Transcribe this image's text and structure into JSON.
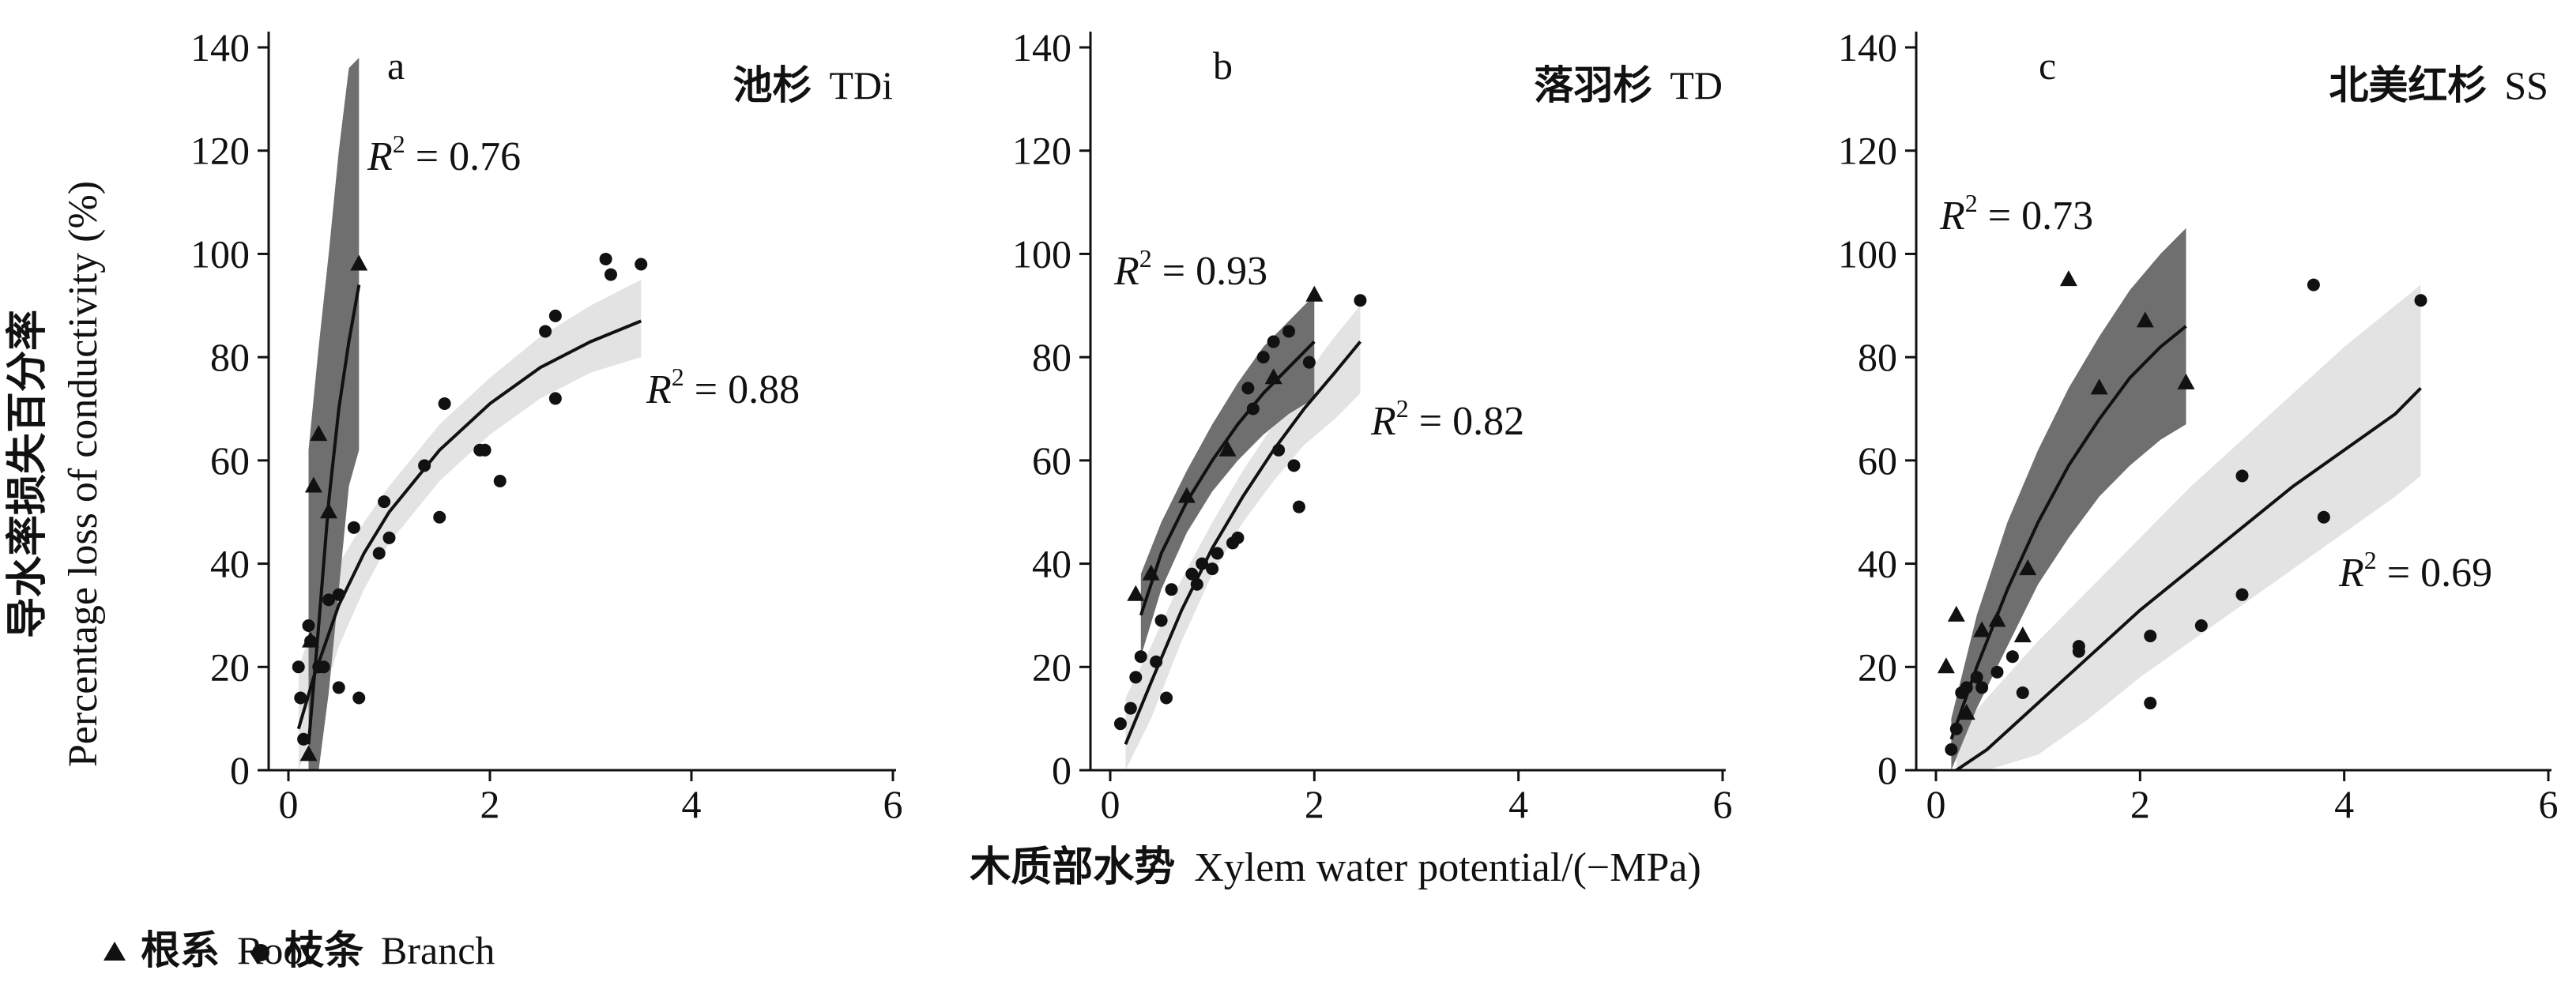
{
  "figure": {
    "ylabel_zh": "导水率损失百分率",
    "ylabel_en": "Percentage loss of conductivity (%)",
    "xlabel_zh": "木质部水势",
    "xlabel_en": "Xylem water potential/(−MPa)",
    "legend": {
      "root_zh": "根系",
      "root_en": "Root",
      "branch_zh": "枝条",
      "branch_en": "Branch"
    },
    "colors": {
      "root_band": "#6f6f6f",
      "branch_band": "#e3e3e3",
      "markers": "#111111",
      "curve": "#111111"
    }
  },
  "chart_data": [
    {
      "type": "scatter",
      "panel_letter": "a",
      "title_zh": "池杉",
      "title_en": "TDi",
      "xlim": [
        0,
        6
      ],
      "ylim": [
        0,
        140
      ],
      "xticks": [
        "0",
        "2",
        "4",
        "6"
      ],
      "yticks": [
        "0",
        "20",
        "40",
        "60",
        "80",
        "100",
        "120",
        "140"
      ],
      "series": [
        {
          "name": "Root",
          "marker": "triangle",
          "r2": "0.76",
          "points": [
            [
              0.2,
              3
            ],
            [
              0.22,
              25
            ],
            [
              0.25,
              55
            ],
            [
              0.3,
              65
            ],
            [
              0.4,
              50
            ],
            [
              0.7,
              98
            ]
          ],
          "fit": [
            [
              0.2,
              5
            ],
            [
              0.3,
              28
            ],
            [
              0.4,
              52
            ],
            [
              0.5,
              70
            ],
            [
              0.6,
              83
            ],
            [
              0.7,
              94
            ]
          ],
          "band_upper": [
            [
              0.2,
              62
            ],
            [
              0.3,
              82
            ],
            [
              0.4,
              100
            ],
            [
              0.5,
              120
            ],
            [
              0.6,
              136
            ],
            [
              0.7,
              138
            ]
          ],
          "band_lower": [
            [
              0.2,
              0
            ],
            [
              0.3,
              0
            ],
            [
              0.4,
              15
            ],
            [
              0.5,
              35
            ],
            [
              0.6,
              55
            ],
            [
              0.7,
              62
            ]
          ]
        },
        {
          "name": "Branch",
          "marker": "circle",
          "r2": "0.88",
          "points": [
            [
              0.1,
              20
            ],
            [
              0.12,
              14
            ],
            [
              0.15,
              6
            ],
            [
              0.2,
              28
            ],
            [
              0.22,
              25
            ],
            [
              0.3,
              20
            ],
            [
              0.35,
              20
            ],
            [
              0.4,
              33
            ],
            [
              0.5,
              16
            ],
            [
              0.5,
              34
            ],
            [
              0.65,
              47
            ],
            [
              0.7,
              14
            ],
            [
              0.9,
              42
            ],
            [
              0.95,
              52
            ],
            [
              1.0,
              45
            ],
            [
              1.35,
              59
            ],
            [
              1.5,
              49
            ],
            [
              1.55,
              71
            ],
            [
              1.9,
              62
            ],
            [
              1.95,
              62
            ],
            [
              2.1,
              56
            ],
            [
              2.55,
              85
            ],
            [
              2.65,
              72
            ],
            [
              2.65,
              88
            ],
            [
              3.15,
              99
            ],
            [
              3.2,
              96
            ],
            [
              3.5,
              98
            ]
          ],
          "fit": [
            [
              0.1,
              8
            ],
            [
              0.25,
              18
            ],
            [
              0.5,
              32
            ],
            [
              0.75,
              42
            ],
            [
              1.0,
              50
            ],
            [
              1.5,
              62
            ],
            [
              2.0,
              71
            ],
            [
              2.5,
              78
            ],
            [
              3.0,
              83
            ],
            [
              3.5,
              87
            ]
          ],
          "band_upper": [
            [
              0.1,
              20
            ],
            [
              0.25,
              28
            ],
            [
              0.5,
              40
            ],
            [
              0.75,
              48
            ],
            [
              1.0,
              55
            ],
            [
              1.5,
              67
            ],
            [
              2.0,
              76
            ],
            [
              2.5,
              84
            ],
            [
              3.0,
              90
            ],
            [
              3.5,
              95
            ]
          ],
          "band_lower": [
            [
              0.1,
              0
            ],
            [
              0.25,
              8
            ],
            [
              0.5,
              24
            ],
            [
              0.75,
              35
            ],
            [
              1.0,
              44
            ],
            [
              1.5,
              56
            ],
            [
              2.0,
              65
            ],
            [
              2.5,
              72
            ],
            [
              3.0,
              77
            ],
            [
              3.5,
              80
            ]
          ]
        }
      ]
    },
    {
      "type": "scatter",
      "panel_letter": "b",
      "title_zh": "落羽杉",
      "title_en": "TD",
      "xlim": [
        0,
        6
      ],
      "ylim": [
        0,
        140
      ],
      "xticks": [
        "0",
        "2",
        "4",
        "6"
      ],
      "yticks": [
        "0",
        "20",
        "40",
        "60",
        "80",
        "100",
        "120",
        "140"
      ],
      "series": [
        {
          "name": "Root",
          "marker": "triangle",
          "r2": "0.93",
          "points": [
            [
              0.25,
              34
            ],
            [
              0.4,
              38
            ],
            [
              0.75,
              53
            ],
            [
              1.15,
              62
            ],
            [
              1.6,
              76
            ],
            [
              2.0,
              92
            ]
          ],
          "fit": [
            [
              0.3,
              30
            ],
            [
              0.5,
              42
            ],
            [
              0.75,
              52
            ],
            [
              1.0,
              60
            ],
            [
              1.25,
              67
            ],
            [
              1.5,
              73
            ],
            [
              1.75,
              78
            ],
            [
              2.0,
              83
            ]
          ],
          "band_upper": [
            [
              0.3,
              38
            ],
            [
              0.5,
              48
            ],
            [
              0.75,
              58
            ],
            [
              1.0,
              67
            ],
            [
              1.25,
              75
            ],
            [
              1.5,
              82
            ],
            [
              1.75,
              87
            ],
            [
              2.0,
              92
            ]
          ],
          "band_lower": [
            [
              0.3,
              22
            ],
            [
              0.5,
              35
            ],
            [
              0.75,
              46
            ],
            [
              1.0,
              54
            ],
            [
              1.25,
              60
            ],
            [
              1.5,
              65
            ],
            [
              1.75,
              69
            ],
            [
              2.0,
              72
            ]
          ]
        },
        {
          "name": "Branch",
          "marker": "circle",
          "r2": "0.82",
          "points": [
            [
              0.1,
              9
            ],
            [
              0.2,
              12
            ],
            [
              0.25,
              18
            ],
            [
              0.3,
              22
            ],
            [
              0.45,
              21
            ],
            [
              0.5,
              29
            ],
            [
              0.55,
              14
            ],
            [
              0.6,
              35
            ],
            [
              0.8,
              38
            ],
            [
              0.85,
              36
            ],
            [
              0.9,
              40
            ],
            [
              1.0,
              39
            ],
            [
              1.05,
              42
            ],
            [
              1.2,
              44
            ],
            [
              1.25,
              45
            ],
            [
              1.35,
              74
            ],
            [
              1.4,
              70
            ],
            [
              1.5,
              80
            ],
            [
              1.6,
              83
            ],
            [
              1.65,
              62
            ],
            [
              1.75,
              85
            ],
            [
              1.8,
              59
            ],
            [
              1.85,
              51
            ],
            [
              1.95,
              79
            ],
            [
              2.45,
              91
            ]
          ],
          "fit": [
            [
              0.15,
              5
            ],
            [
              0.4,
              17
            ],
            [
              0.7,
              31
            ],
            [
              1.0,
              43
            ],
            [
              1.3,
              53
            ],
            [
              1.6,
              62
            ],
            [
              1.9,
              70
            ],
            [
              2.2,
              77
            ],
            [
              2.45,
              83
            ]
          ],
          "band_upper": [
            [
              0.15,
              14
            ],
            [
              0.4,
              24
            ],
            [
              0.7,
              37
            ],
            [
              1.0,
              48
            ],
            [
              1.3,
              58
            ],
            [
              1.6,
              67
            ],
            [
              1.9,
              76
            ],
            [
              2.2,
              84
            ],
            [
              2.45,
              90
            ]
          ],
          "band_lower": [
            [
              0.15,
              0
            ],
            [
              0.4,
              10
            ],
            [
              0.7,
              25
            ],
            [
              1.0,
              38
            ],
            [
              1.3,
              48
            ],
            [
              1.6,
              56
            ],
            [
              1.9,
              63
            ],
            [
              2.2,
              68
            ],
            [
              2.45,
              73
            ]
          ]
        }
      ]
    },
    {
      "type": "scatter",
      "panel_letter": "c",
      "title_zh": "北美红杉",
      "title_en": "SS",
      "xlim": [
        0,
        6
      ],
      "ylim": [
        0,
        140
      ],
      "xticks": [
        "0",
        "2",
        "4",
        "6"
      ],
      "yticks": [
        "0",
        "20",
        "40",
        "60",
        "80",
        "100",
        "120",
        "140"
      ],
      "series": [
        {
          "name": "Root",
          "marker": "triangle",
          "r2": "0.73",
          "points": [
            [
              0.1,
              20
            ],
            [
              0.2,
              30
            ],
            [
              0.3,
              11
            ],
            [
              0.45,
              27
            ],
            [
              0.6,
              29
            ],
            [
              0.85,
              26
            ],
            [
              0.9,
              39
            ],
            [
              1.3,
              95
            ],
            [
              1.6,
              74
            ],
            [
              2.05,
              87
            ],
            [
              2.45,
              75
            ]
          ],
          "fit": [
            [
              0.15,
              6
            ],
            [
              0.4,
              20
            ],
            [
              0.7,
              35
            ],
            [
              1.0,
              48
            ],
            [
              1.3,
              59
            ],
            [
              1.6,
              68
            ],
            [
              1.9,
              76
            ],
            [
              2.2,
              82
            ],
            [
              2.45,
              86
            ]
          ],
          "band_upper": [
            [
              0.15,
              10
            ],
            [
              0.4,
              30
            ],
            [
              0.7,
              48
            ],
            [
              1.0,
              62
            ],
            [
              1.3,
              74
            ],
            [
              1.6,
              84
            ],
            [
              1.9,
              93
            ],
            [
              2.2,
              100
            ],
            [
              2.45,
              105
            ]
          ],
          "band_lower": [
            [
              0.15,
              0
            ],
            [
              0.4,
              12
            ],
            [
              0.7,
              24
            ],
            [
              1.0,
              36
            ],
            [
              1.3,
              45
            ],
            [
              1.6,
              53
            ],
            [
              1.9,
              59
            ],
            [
              2.2,
              64
            ],
            [
              2.45,
              67
            ]
          ]
        },
        {
          "name": "Branch",
          "marker": "circle",
          "r2": "0.69",
          "points": [
            [
              0.15,
              4
            ],
            [
              0.2,
              8
            ],
            [
              0.25,
              15
            ],
            [
              0.3,
              16
            ],
            [
              0.4,
              18
            ],
            [
              0.45,
              16
            ],
            [
              0.6,
              19
            ],
            [
              0.75,
              22
            ],
            [
              0.85,
              15
            ],
            [
              1.4,
              24
            ],
            [
              1.4,
              23
            ],
            [
              2.1,
              26
            ],
            [
              2.1,
              13
            ],
            [
              2.6,
              28
            ],
            [
              3.0,
              57
            ],
            [
              3.0,
              34
            ],
            [
              3.7,
              94
            ],
            [
              3.8,
              49
            ],
            [
              4.75,
              91
            ]
          ],
          "fit": [
            [
              0.2,
              0
            ],
            [
              0.5,
              4
            ],
            [
              1.0,
              13
            ],
            [
              1.5,
              22
            ],
            [
              2.0,
              31
            ],
            [
              2.5,
              39
            ],
            [
              3.0,
              47
            ],
            [
              3.5,
              55
            ],
            [
              4.0,
              62
            ],
            [
              4.5,
              69
            ],
            [
              4.75,
              74
            ]
          ],
          "band_upper": [
            [
              0.2,
              7
            ],
            [
              0.5,
              14
            ],
            [
              1.0,
              25
            ],
            [
              1.5,
              35
            ],
            [
              2.0,
              45
            ],
            [
              2.5,
              55
            ],
            [
              3.0,
              64
            ],
            [
              3.5,
              73
            ],
            [
              4.0,
              82
            ],
            [
              4.5,
              90
            ],
            [
              4.75,
              94
            ]
          ],
          "band_lower": [
            [
              0.2,
              0
            ],
            [
              0.5,
              0
            ],
            [
              1.0,
              3
            ],
            [
              1.5,
              10
            ],
            [
              2.0,
              18
            ],
            [
              2.5,
              25
            ],
            [
              3.0,
              32
            ],
            [
              3.5,
              39
            ],
            [
              4.0,
              46
            ],
            [
              4.5,
              53
            ],
            [
              4.75,
              57
            ]
          ]
        }
      ]
    }
  ]
}
